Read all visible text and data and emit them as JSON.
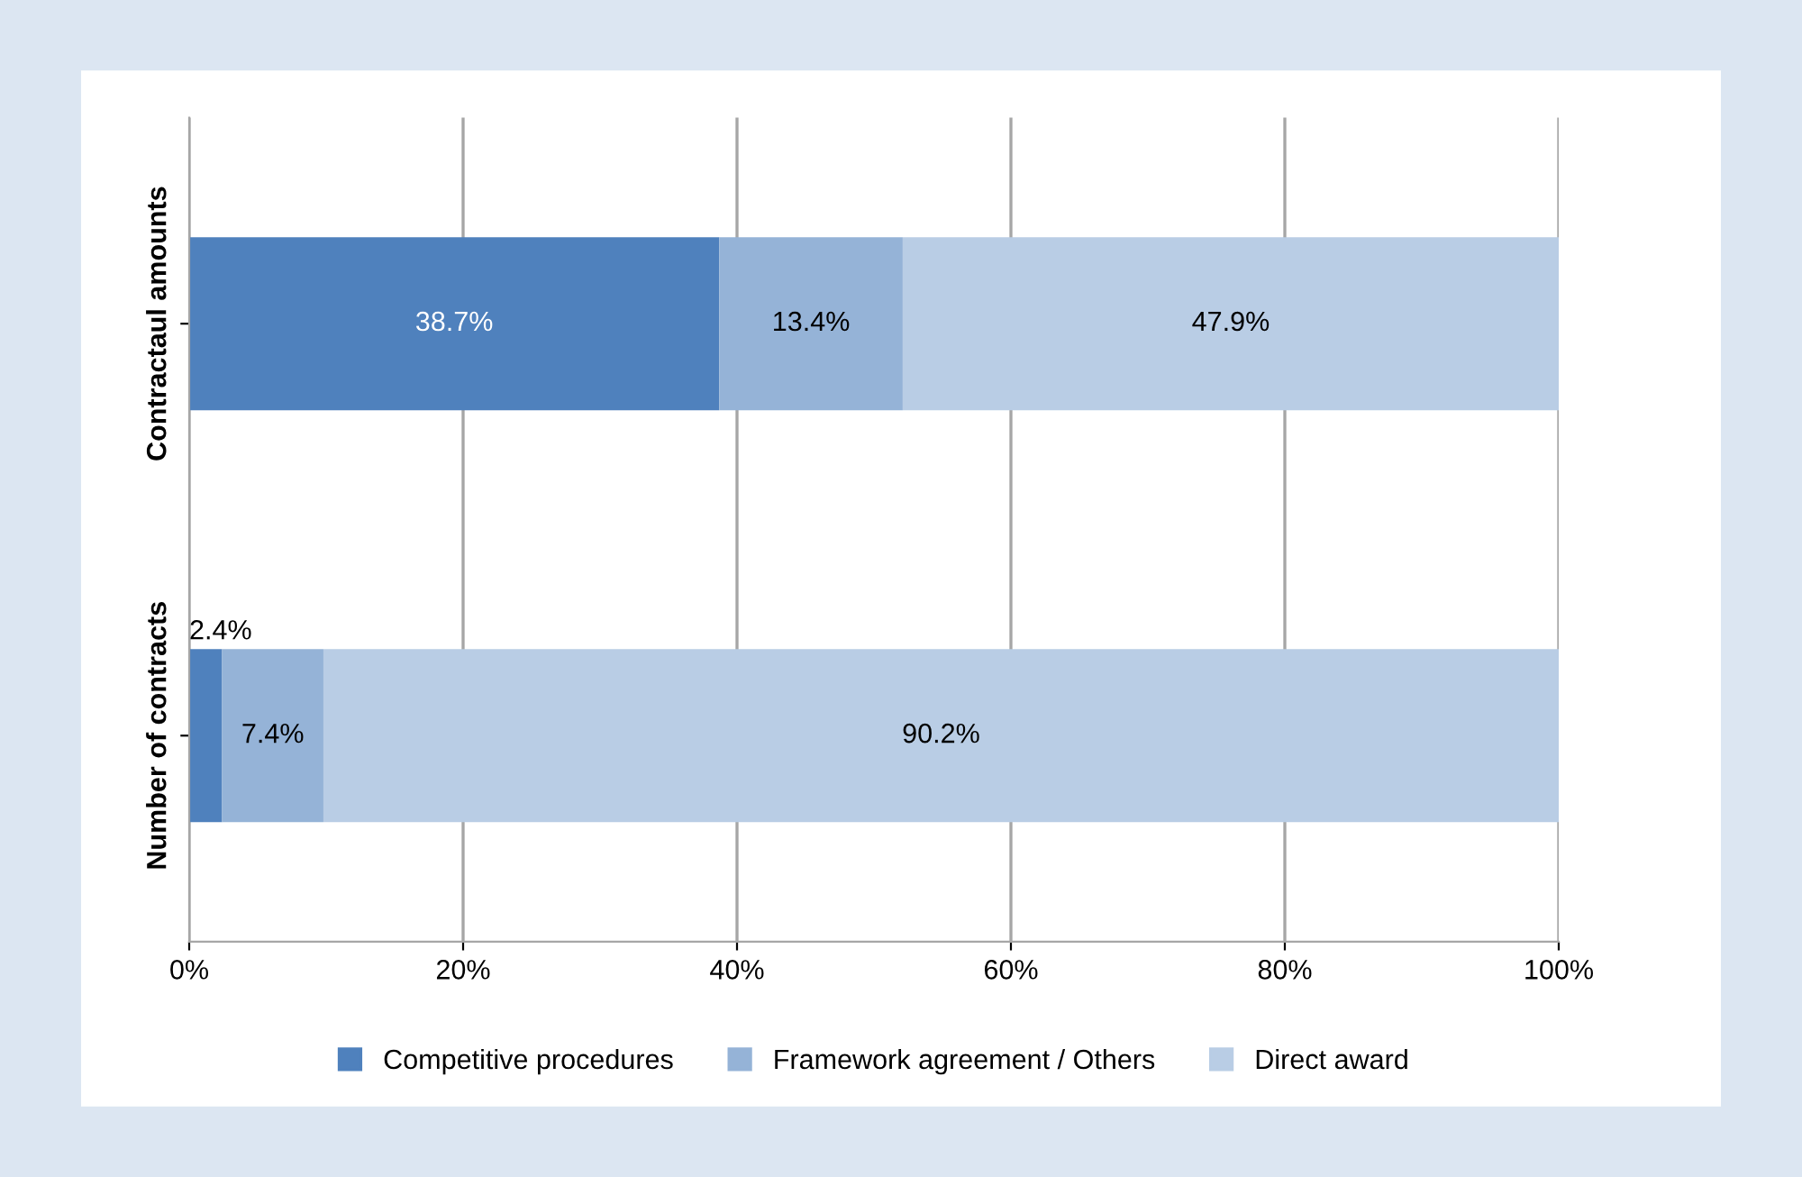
{
  "chart_data": {
    "type": "bar",
    "orientation": "horizontal",
    "stacked": true,
    "categories": [
      "Contractaul amounts",
      "Number of contracts"
    ],
    "series": [
      {
        "name": "Competitive procedures",
        "color": "#4f81bd",
        "values": [
          38.7,
          2.4
        ],
        "value_labels": [
          "38.7%",
          "2.4%"
        ]
      },
      {
        "name": "Framework agreement / Others",
        "color": "#95b3d7",
        "values": [
          13.4,
          7.4
        ],
        "value_labels": [
          "13.4%",
          "7.4%"
        ]
      },
      {
        "name": "Direct award",
        "color": "#b9cde5",
        "values": [
          47.9,
          90.2
        ],
        "value_labels": [
          "47.9%",
          "90.2%"
        ]
      }
    ],
    "xlim": [
      0,
      100
    ],
    "xticks": [
      {
        "value": 0,
        "label": "0%"
      },
      {
        "value": 20,
        "label": "20%"
      },
      {
        "value": 40,
        "label": "40%"
      },
      {
        "value": 60,
        "label": "60%"
      },
      {
        "value": 80,
        "label": "80%"
      },
      {
        "value": 100,
        "label": "100%"
      }
    ],
    "grid": "x",
    "legend": "bottom"
  }
}
